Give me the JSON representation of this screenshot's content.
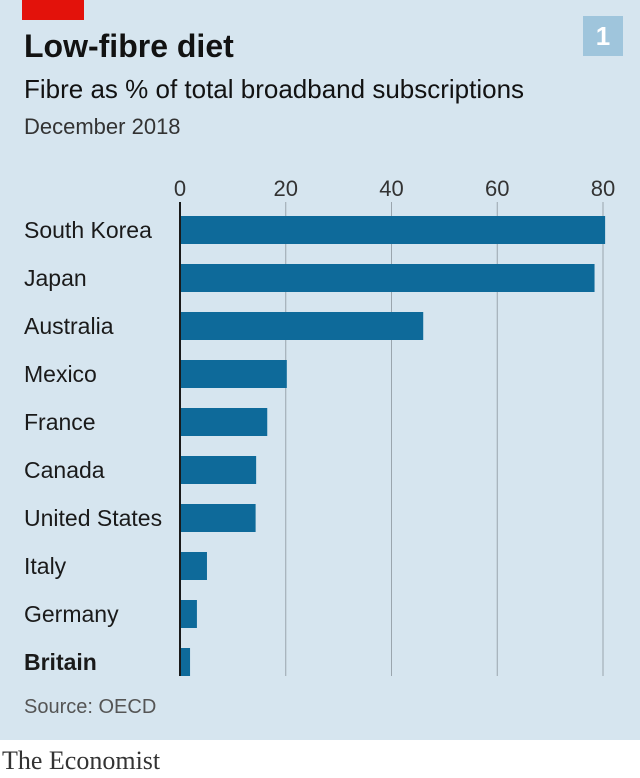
{
  "header": {
    "title": "Low-fibre diet",
    "subtitle": "Fibre as % of total broadband subscriptions",
    "date": "December 2018",
    "badge": "1"
  },
  "footer": {
    "source": "Source: OECD",
    "brand": "The Economist"
  },
  "colors": {
    "bar": "#0e6a9a",
    "background": "#d6e5ef",
    "gridline": "#9aa5ad",
    "accent_red": "#e3120b"
  },
  "chart_data": {
    "type": "bar",
    "orientation": "horizontal",
    "title": "Low-fibre diet",
    "subtitle": "Fibre as % of total broadband subscriptions",
    "xlim": [
      0,
      80
    ],
    "ticks": [
      "0",
      "20",
      "40",
      "60",
      "80"
    ],
    "tick_values": [
      0,
      20,
      40,
      60,
      80
    ],
    "grid": true,
    "highlight_category": "Britain",
    "categories": [
      "South Korea",
      "Japan",
      "Australia",
      "Mexico",
      "France",
      "Canada",
      "United States",
      "Italy",
      "Germany",
      "Britain"
    ],
    "values": [
      80.4,
      78.4,
      46.0,
      20.2,
      16.5,
      14.4,
      14.3,
      5.1,
      3.2,
      1.9
    ]
  }
}
